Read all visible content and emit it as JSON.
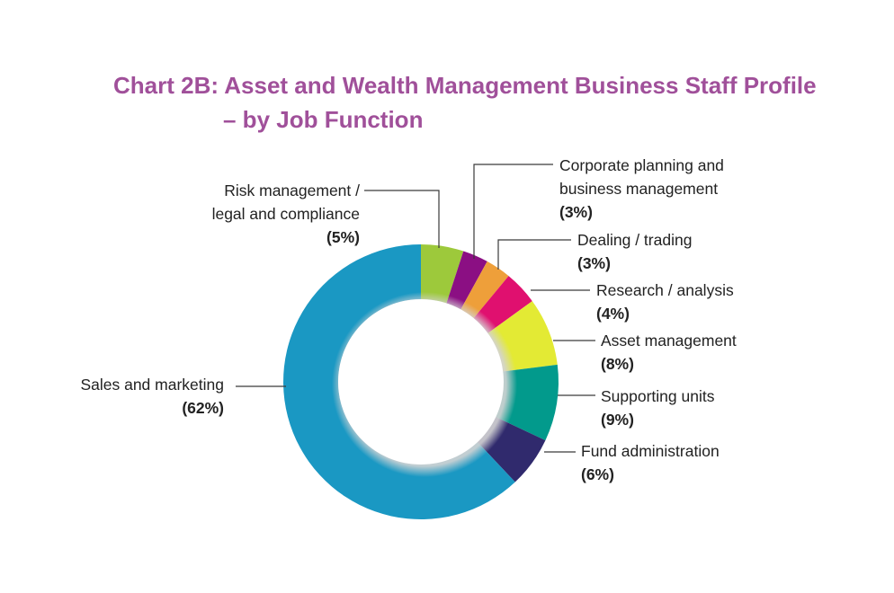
{
  "chart_data": {
    "type": "pie",
    "title_line1": "Chart 2B: Asset and Wealth Management Business Staff Profile",
    "title_line2": "– by Job Function",
    "slices": [
      {
        "name": "Risk management / legal and compliance",
        "name_lines": [
          "Risk management /",
          "legal and compliance"
        ],
        "value": 5,
        "value_label": "(5%)",
        "color": "#9dc93b"
      },
      {
        "name": "Corporate planning and business management",
        "name_lines": [
          "Corporate planning and",
          "business management"
        ],
        "value": 3,
        "value_label": "(3%)",
        "color": "#8b0f83"
      },
      {
        "name": "Dealing / trading",
        "name_lines": [
          "Dealing / trading"
        ],
        "value": 3,
        "value_label": "(3%)",
        "color": "#ee9f3a"
      },
      {
        "name": "Research / analysis",
        "name_lines": [
          "Research / analysis"
        ],
        "value": 4,
        "value_label": "(4%)",
        "color": "#e0106f"
      },
      {
        "name": "Asset management",
        "name_lines": [
          "Asset management"
        ],
        "value": 8,
        "value_label": "(8%)",
        "color": "#e3ea34"
      },
      {
        "name": "Supporting units",
        "name_lines": [
          "Supporting units"
        ],
        "value": 9,
        "value_label": "(9%)",
        "color": "#029a8c"
      },
      {
        "name": "Fund administration",
        "name_lines": [
          "Fund administration"
        ],
        "value": 6,
        "value_label": "(6%)",
        "color": "#302a6d"
      },
      {
        "name": "Sales and marketing",
        "name_lines": [
          "Sales and marketing"
        ],
        "value": 62,
        "value_label": "(62%)",
        "color": "#1a98c3"
      }
    ]
  }
}
